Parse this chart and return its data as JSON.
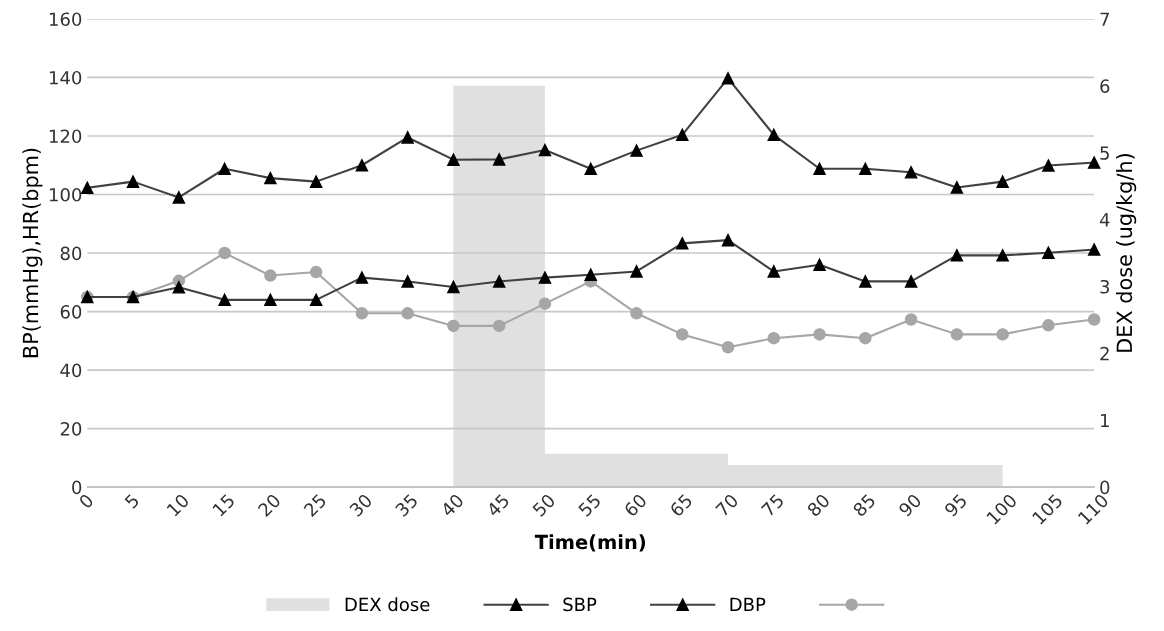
{
  "chart_data": {
    "type": "line",
    "xlabel": "Time(min)",
    "ylabel": "BP(mmHg),HR(bpm)",
    "y2label": "DEX dose (ug/kg/h)",
    "x": [
      0,
      5,
      10,
      15,
      20,
      25,
      30,
      35,
      40,
      45,
      50,
      55,
      60,
      65,
      70,
      75,
      80,
      85,
      90,
      95,
      100,
      105,
      110
    ],
    "xlim": [
      0,
      110
    ],
    "xticks": [
      0,
      5,
      10,
      15,
      20,
      25,
      30,
      35,
      40,
      45,
      50,
      55,
      60,
      65,
      70,
      75,
      80,
      85,
      90,
      95,
      100,
      105,
      110
    ],
    "ylim": [
      0,
      160
    ],
    "yticks": [
      0,
      20,
      40,
      60,
      80,
      100,
      120,
      140,
      160
    ],
    "y2lim": [
      0,
      7
    ],
    "y2ticks": [
      0,
      1,
      2,
      3,
      4,
      5,
      6,
      7
    ],
    "grid": "y",
    "legend": "bottom",
    "series": [
      {
        "name": "DEX dose",
        "type": "area",
        "axis": "y2",
        "color": "#e0e0e0",
        "x": [
          40,
          50,
          50,
          70,
          70,
          100
        ],
        "values": [
          6,
          6,
          0.5,
          0.5,
          0.33,
          0.33
        ]
      },
      {
        "name": "SBP",
        "color": "#404040",
        "marker": "triangle",
        "values": [
          102.3,
          104.4,
          99,
          108.8,
          105.6,
          104.4,
          110,
          119.5,
          111.9,
          112,
          115.2,
          108.8,
          115,
          120.4,
          139.7,
          120.4,
          108.8,
          108.8,
          107.6,
          102.4,
          104.4,
          109.9,
          110.9
        ]
      },
      {
        "name": "DBP",
        "color": "#404040",
        "marker": "triangle",
        "values": [
          65,
          65,
          68.3,
          64,
          64,
          64,
          71.6,
          70.3,
          68.4,
          70.3,
          71.6,
          72.6,
          73.7,
          83.3,
          84.4,
          73.7,
          76,
          70.3,
          70.3,
          79.2,
          79.2,
          80.1,
          81.2
        ]
      },
      {
        "color": "#a6a6a6",
        "marker": "circle",
        "values": [
          65,
          65,
          70.5,
          80,
          72.3,
          73.5,
          59.4,
          59.4,
          55.1,
          55.1,
          62.7,
          70.3,
          59.4,
          52.2,
          47.8,
          50.9,
          52.2,
          50.9,
          57.3,
          52.2,
          52.2,
          55.3,
          57.3
        ]
      }
    ]
  }
}
